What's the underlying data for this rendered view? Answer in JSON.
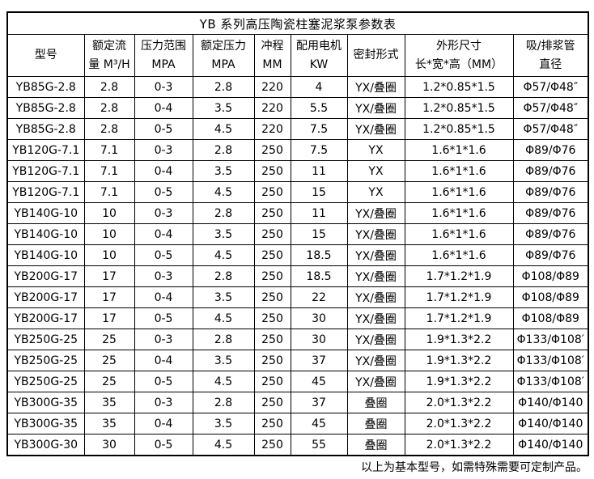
{
  "table": {
    "title": "YB 系列高压陶瓷柱塞泥浆泵参数表",
    "headers": [
      [
        "型号"
      ],
      [
        "额定流",
        "量 M³/H"
      ],
      [
        "压力范围",
        "MPA"
      ],
      [
        "额定压力",
        "MPA"
      ],
      [
        "冲程",
        "MM"
      ],
      [
        "配用电机",
        "KW"
      ],
      [
        "密封形式"
      ],
      [
        "外形尺寸",
        "长*宽*高（MM）"
      ],
      [
        "吸/排浆管",
        "直径"
      ]
    ],
    "rows": [
      [
        "YB85G-2.8",
        "2.8",
        "0-3",
        "2.8",
        "220",
        "4",
        "YX/叠圈",
        "1.2*0.85*1.5",
        "Φ57/Φ48″"
      ],
      [
        "YB85G-2.8",
        "2.8",
        "0-4",
        "3.5",
        "220",
        "5.5",
        "YX/叠圈",
        "1.2*0.85*1.5",
        "Φ57/Φ48″"
      ],
      [
        "YB85G-2.8",
        "2.8",
        "0-5",
        "4.5",
        "220",
        "7.5",
        "YX/叠圈",
        "1.2*0.85*1.5",
        "Φ57/Φ48″"
      ],
      [
        "YB120G-7.1",
        "7.1",
        "0-3",
        "2.8",
        "250",
        "7.5",
        "YX",
        "1.6*1*1.6",
        "Φ89/Φ76"
      ],
      [
        "YB120G-7.1",
        "7.1",
        "0-4",
        "3.5",
        "250",
        "11",
        "YX",
        "1.6*1*1.6",
        "Φ89/Φ76"
      ],
      [
        "YB120G-7.1",
        "7.1",
        "0-5",
        "4.5",
        "250",
        "15",
        "YX",
        "1.6*1*1.6",
        "Φ89/Φ76"
      ],
      [
        "YB140G-10",
        "10",
        "0-3",
        "2.8",
        "250",
        "11",
        "YX/叠圈",
        "1.6*1*1.6",
        "Φ89/Φ76"
      ],
      [
        "YB140G-10",
        "10",
        "0-4",
        "3.5",
        "250",
        "15",
        "YX/叠圈",
        "1.6*1*1.6",
        "Φ89/Φ76"
      ],
      [
        "YB140G-10",
        "10",
        "0-5",
        "4.5",
        "250",
        "18.5",
        "YX/叠圈",
        "1.6*1*1.6",
        "Φ89/Φ76"
      ],
      [
        "YB200G-17",
        "17",
        "0-3",
        "2.8",
        "250",
        "18.5",
        "YX/叠圈",
        "1.7*1.2*1.9",
        "Φ108/Φ89"
      ],
      [
        "YB200G-17",
        "17",
        "0-4",
        "3.5",
        "250",
        "22",
        "YX/叠圈",
        "1.7*1.2*1.9",
        "Φ108/Φ89"
      ],
      [
        "YB200G-17",
        "17",
        "0-5",
        "4.5",
        "250",
        "30",
        "YX/叠圈",
        "1.7*1.2*1.9",
        "Φ108/Φ89"
      ],
      [
        "YB250G-25",
        "25",
        "0-3",
        "2.8",
        "250",
        "30",
        "YX/叠圈",
        "1.9*1.3*2.2",
        "Φ133/Φ108′"
      ],
      [
        "YB250G-25",
        "25",
        "0-4",
        "3.5",
        "250",
        "37",
        "YX/叠圈",
        "1.9*1.3*2.2",
        "Φ133/Φ108′"
      ],
      [
        "YB250G-25",
        "25",
        "0-5",
        "4.5",
        "250",
        "45",
        "YX/叠圈",
        "1.9*1.3*2.2",
        "Φ133/Φ108′"
      ],
      [
        "YB300G-35",
        "35",
        "0-3",
        "2.8",
        "250",
        "37",
        "叠圈",
        "2.0*1.3*2.2",
        "Φ140/Φ140"
      ],
      [
        "YB300G-35",
        "35",
        "0-4",
        "3.5",
        "250",
        "45",
        "叠圈",
        "2.0*1.3*2.2",
        "Φ140/Φ140"
      ],
      [
        "YB300G-30",
        "30",
        "0-5",
        "4.5",
        "250",
        "55",
        "叠圈",
        "2.0*1.3*2.2",
        "Φ140/Φ140"
      ]
    ]
  },
  "footer": {
    "note": "以上为基本型号，如需特殊需要可定制产品。"
  },
  "colors": {
    "border": "#000000",
    "text": "#000000",
    "background": "#ffffff"
  }
}
